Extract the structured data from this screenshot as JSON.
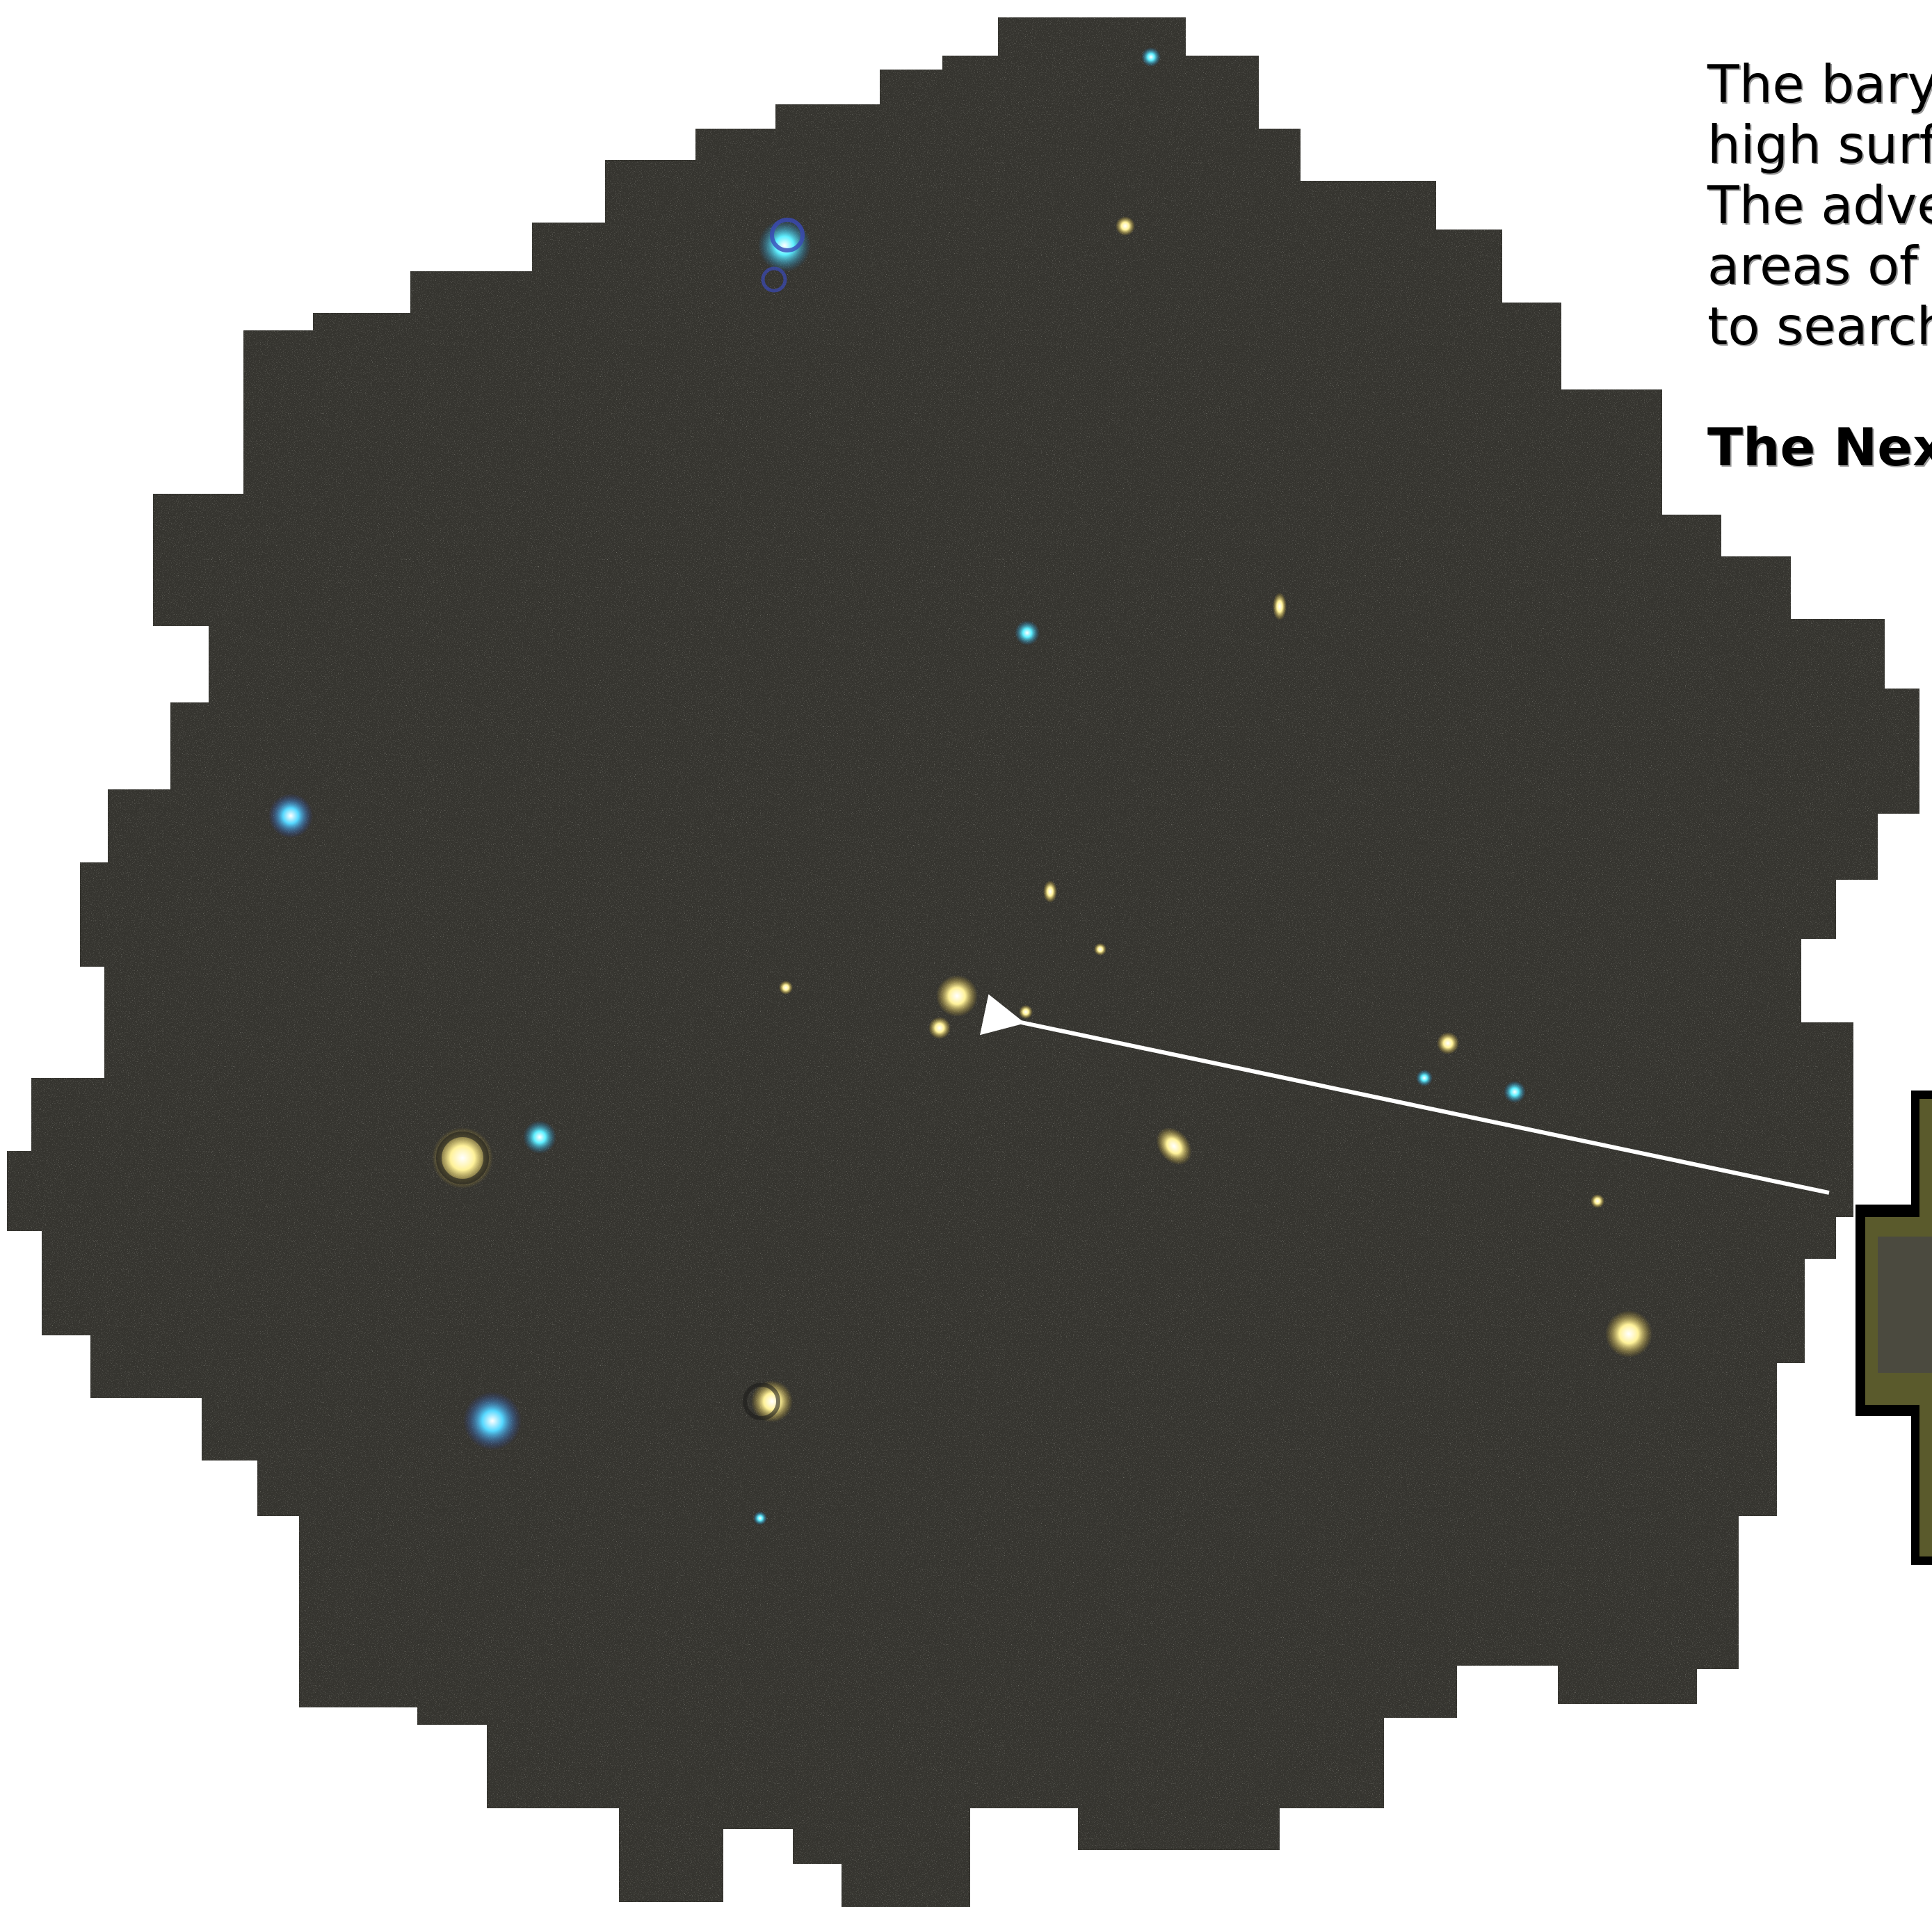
{
  "caption": {
    "lines": [
      "The bary",
      "high surf",
      "The adve",
      "areas of",
      "to search"
    ],
    "heading": "The Nex"
  },
  "colors": {
    "background": "#ffffff",
    "sky": "#35342f",
    "star_yellow": "#fff1a0",
    "star_cyan": "#3fe6ff",
    "star_white": "#ffffff",
    "arrow": "#ffffff",
    "inset_frame": "#000000",
    "inset_fill": "#5a5a2c"
  }
}
